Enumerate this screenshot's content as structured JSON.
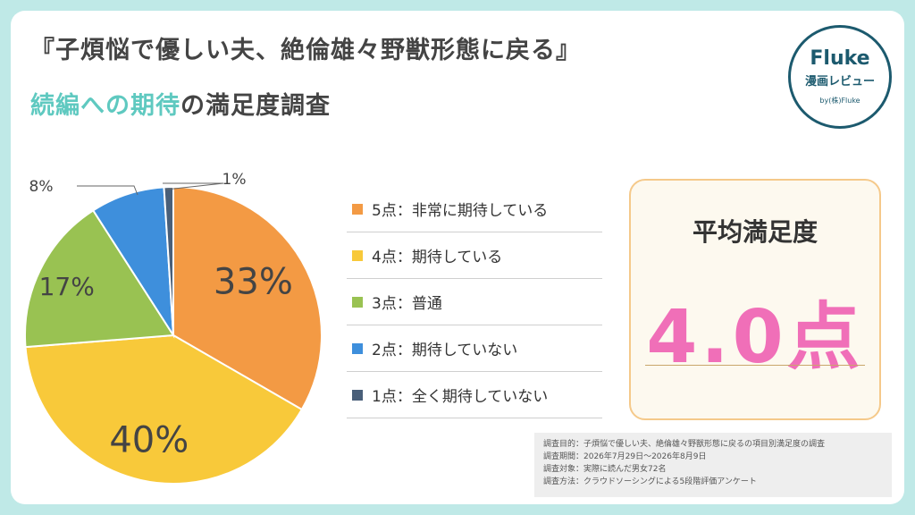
{
  "header": {
    "title_line1": "『子煩悩で優しい夫、絶倫雄々野獣形態に戻る』",
    "title_line2_highlight": "続編への期待",
    "title_line2_rest": "の満足度調査"
  },
  "logo": {
    "brand": "Fluke",
    "sub": "漫画レビュー",
    "by": "by(株)Fluke"
  },
  "chart_data": {
    "type": "pie",
    "slices": [
      {
        "label": "5点：非常に期待している",
        "value": 33,
        "display": "33%",
        "color": "#f39a44"
      },
      {
        "label": "4点：期待している",
        "value": 40,
        "display": "40%",
        "color": "#f8c93a"
      },
      {
        "label": "3点：普通",
        "value": 17,
        "display": "17%",
        "color": "#99c252"
      },
      {
        "label": "2点：期待していない",
        "value": 8,
        "display": "8%",
        "color": "#3e8fdc"
      },
      {
        "label": "1点：全く期待していない",
        "value": 1,
        "display": "1%",
        "color": "#495f79"
      }
    ]
  },
  "average": {
    "label": "平均満足度",
    "value": "4.0点"
  },
  "notes": [
    "調査目的：子煩悩で優しい夫、絶倫雄々野獣形態に戻るの項目別満足度の調査",
    "調査期間：2026年7月29日～2026年8月9日",
    "調査対象：実際に読んだ男女72名",
    "調査方法：クラウドソーシングによる5段階評価アンケート"
  ]
}
